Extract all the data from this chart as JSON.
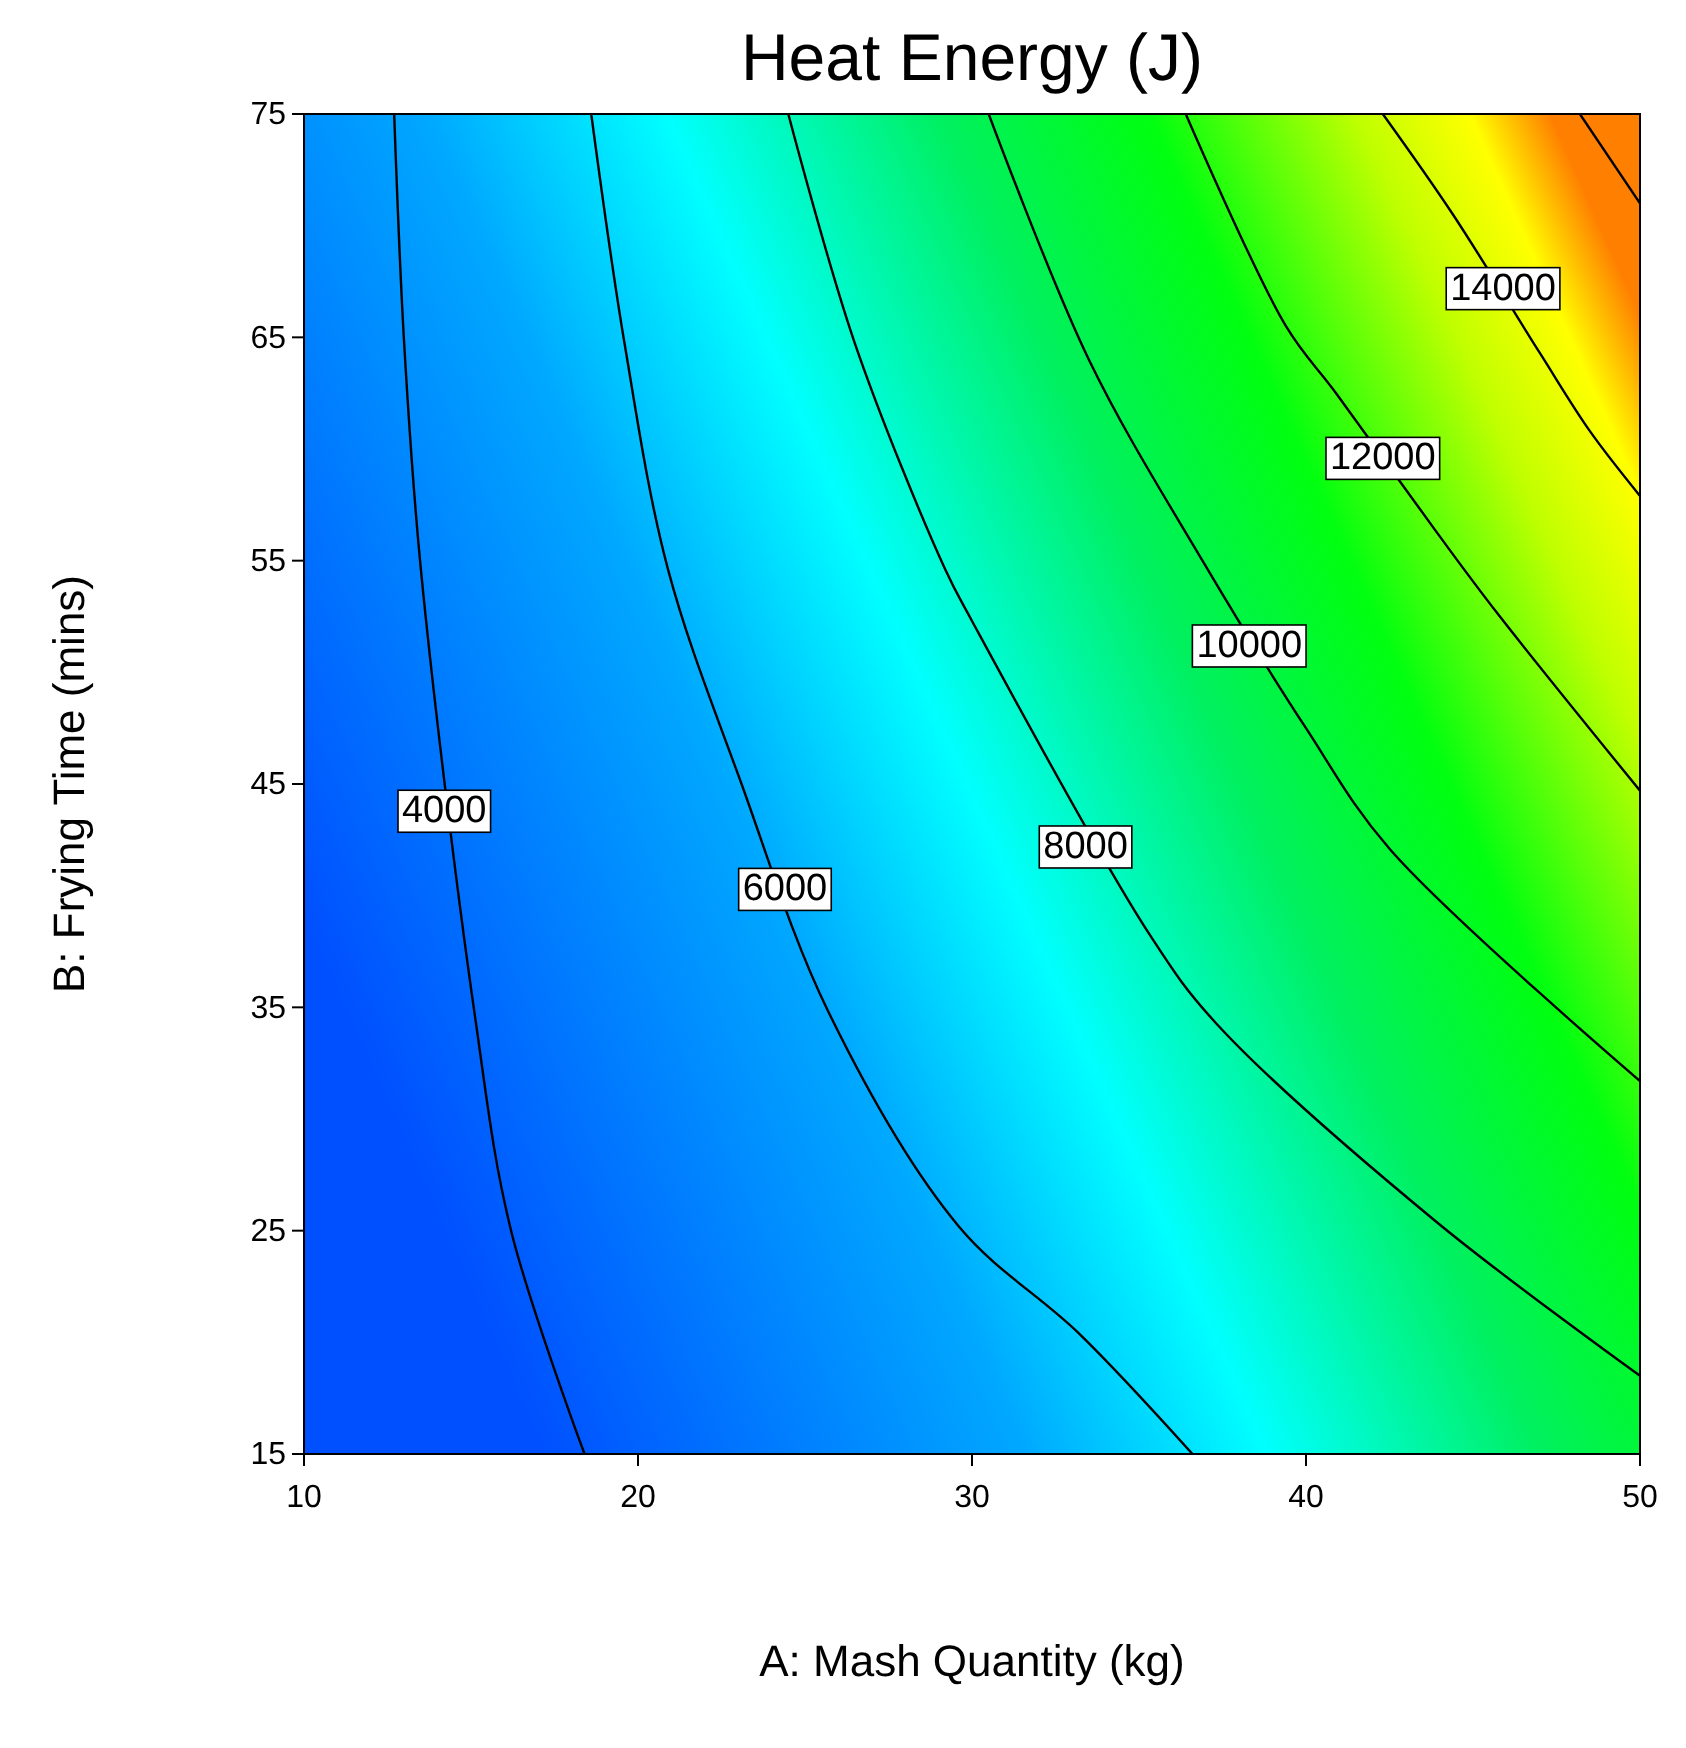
{
  "chart_data": {
    "type": "line",
    "title": "Heat Energy (J)",
    "xlabel": "A: Mash Quantity (kg)",
    "ylabel": "B: Frying Time (mins)",
    "xlim": [
      10,
      50
    ],
    "ylim": [
      15,
      75
    ],
    "xticks": [
      10,
      20,
      30,
      40,
      50
    ],
    "yticks": [
      15,
      25,
      35,
      45,
      55,
      65,
      75
    ],
    "grid": false,
    "series": [
      {
        "color": "#000000",
        "x": [
          12.7,
          13.0,
          13.5,
          15.1,
          16.2,
          18.4
        ],
        "values": [
          75,
          64.7,
          54.6,
          34.8,
          25.0,
          15
        ]
      },
      {
        "color": "#000000",
        "x": [
          18.6,
          19.6,
          20.9,
          23.1,
          25.7,
          29.6,
          33.2,
          36.6
        ],
        "values": [
          75,
          64.7,
          54.6,
          45,
          34.8,
          25.2,
          20.4,
          15
        ]
      },
      {
        "color": "#000000",
        "x": [
          24.5,
          26.5,
          29.2,
          30.0,
          35.3,
          37.3,
          43.9,
          50
        ],
        "values": [
          75,
          64.7,
          54.6,
          52.3,
          38.3,
          34.3,
          25.4,
          18.5
        ]
      },
      {
        "color": "#000000",
        "x": [
          30.5,
          33.5,
          36.9,
          40.0,
          42.5,
          50
        ],
        "values": [
          75,
          64.0,
          55,
          47.5,
          42.1,
          31.7
        ]
      },
      {
        "color": "#000000",
        "x": [
          36.4,
          39.4,
          40.9,
          43.9,
          45.7,
          50
        ],
        "values": [
          75,
          65.5,
          62.5,
          56.3,
          52.7,
          44.7
        ]
      },
      {
        "color": "#000000",
        "x": [
          42.3,
          44.4,
          47.0,
          48.5,
          50
        ],
        "values": [
          75,
          70.5,
          64.3,
          60.8,
          57.9
        ]
      },
      {
        "color": "#000000",
        "x": [
          48.2,
          50
        ],
        "values": [
          75,
          71.0
        ]
      }
    ],
    "annotations": [
      {
        "text": "4000",
        "x": 14.2,
        "y": 43.9
      },
      {
        "text": "6000",
        "x": 24.4,
        "y": 40.4
      },
      {
        "text": "8000",
        "x": 33.4,
        "y": 42.3
      },
      {
        "text": "10000",
        "x": 38.3,
        "y": 51.3
      },
      {
        "text": "12000",
        "x": 42.3,
        "y": 59.7
      },
      {
        "text": "14000",
        "x": 45.9,
        "y": 67.3
      }
    ]
  }
}
